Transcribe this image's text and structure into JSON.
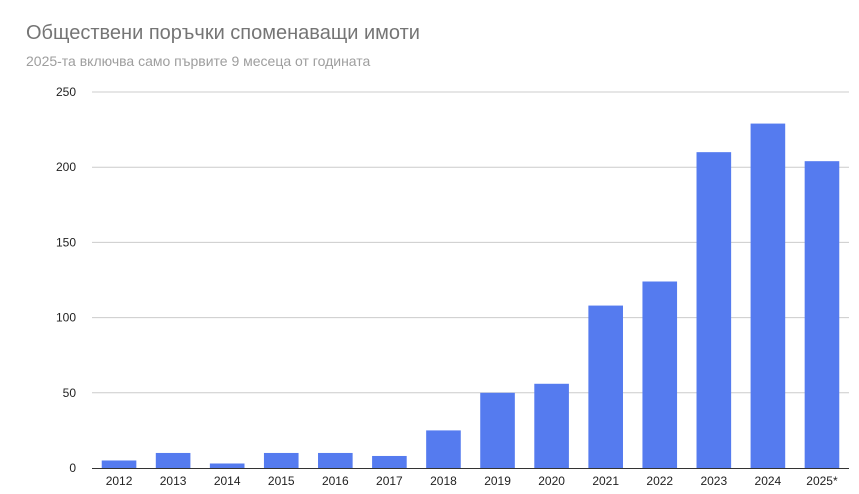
{
  "chart_data": {
    "type": "bar",
    "title": "Обществени поръчки споменаващи имоти",
    "subtitle": "2025-та включва само първите 9 месеца от годината",
    "categories": [
      "2012",
      "2013",
      "2014",
      "2015",
      "2016",
      "2017",
      "2018",
      "2019",
      "2020",
      "2021",
      "2022",
      "2023",
      "2024",
      "2025*"
    ],
    "values": [
      5,
      10,
      3,
      10,
      10,
      8,
      25,
      50,
      56,
      108,
      124,
      210,
      229,
      204
    ],
    "ylim": [
      0,
      250
    ],
    "yticks": [
      0,
      50,
      100,
      150,
      200,
      250
    ],
    "xlabel": "",
    "ylabel": "",
    "grid": true,
    "bar_color": "#557bef",
    "grid_color": "#cccccc",
    "axis_color": "#333333"
  }
}
